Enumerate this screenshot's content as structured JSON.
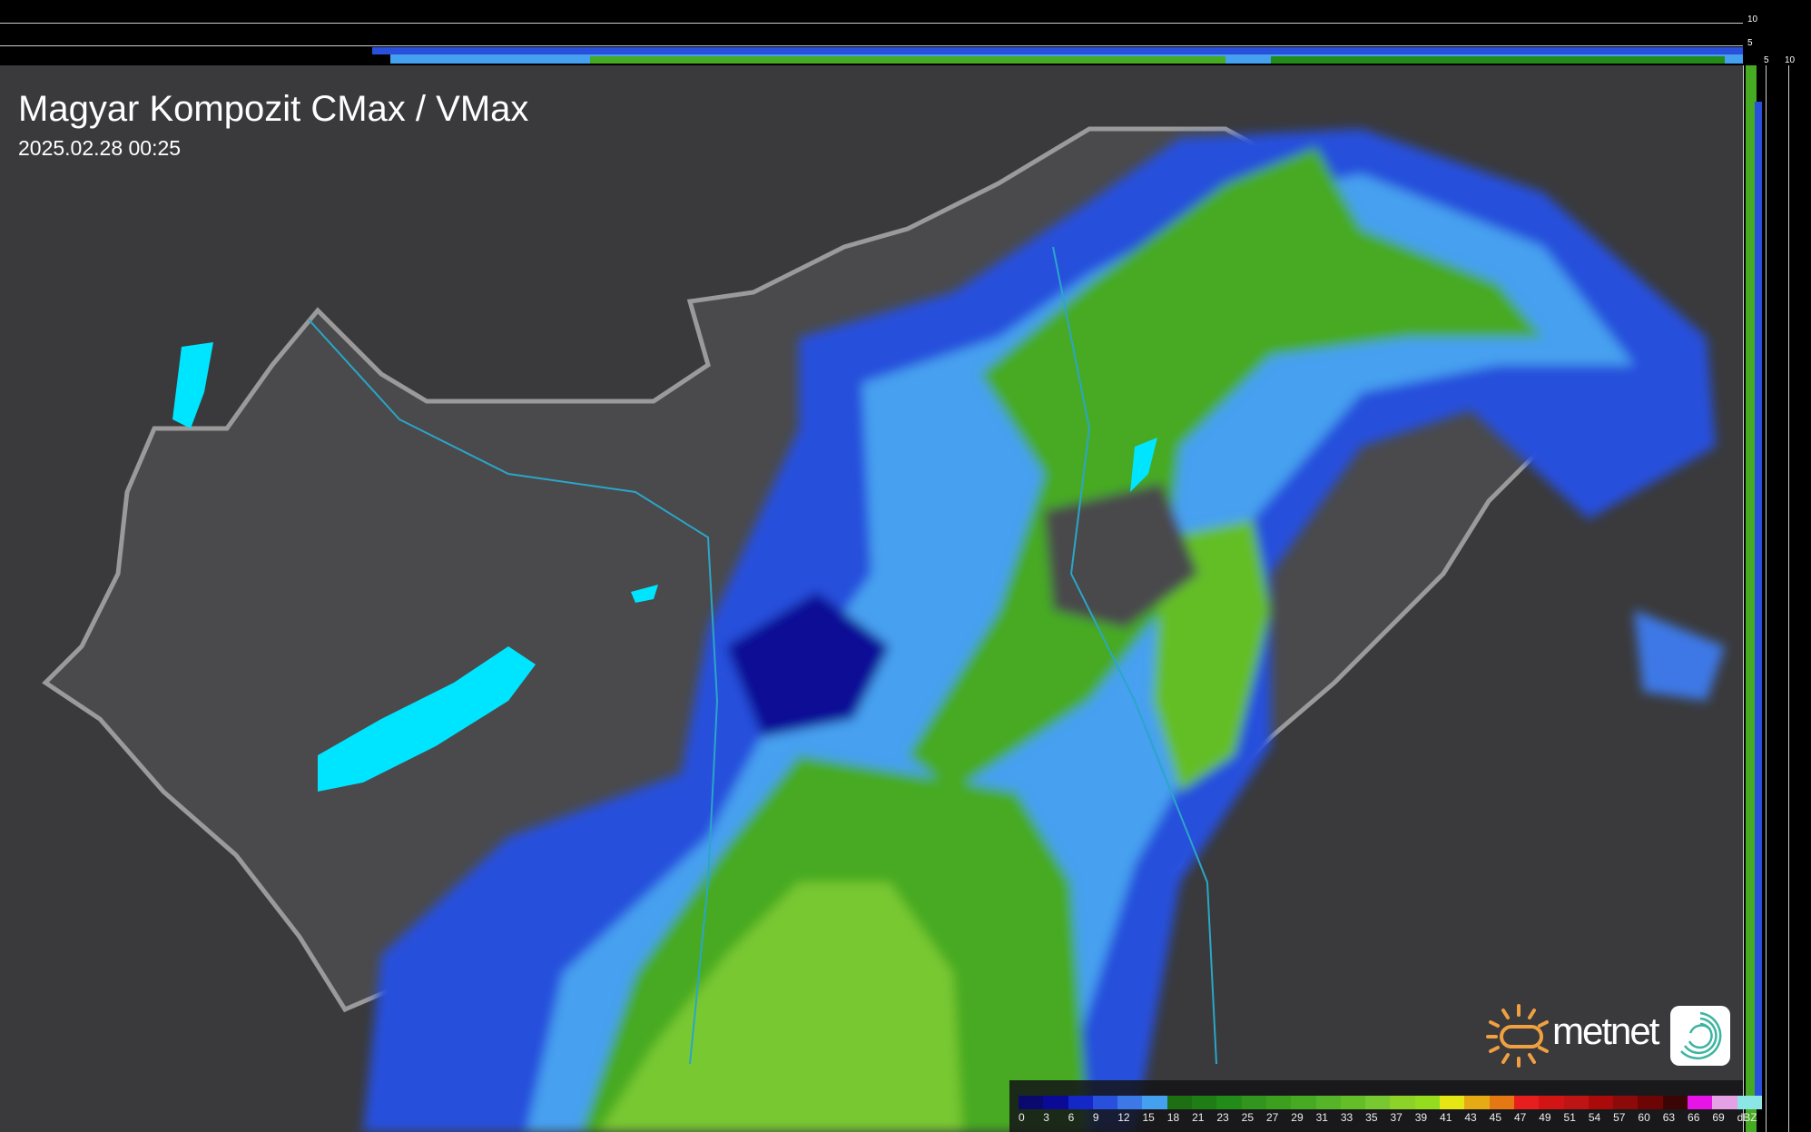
{
  "header": {
    "title": "Magyar Kompozit CMax / VMax",
    "timestamp": "2025.02.28 00:25"
  },
  "profile_axes": {
    "vertical_ticks": [
      "10",
      "5"
    ],
    "horizontal_ticks": [
      "5",
      "10"
    ]
  },
  "legend": {
    "unit": "dBZ",
    "labels": [
      "0",
      "3",
      "6",
      "9",
      "12",
      "15",
      "18",
      "21",
      "23",
      "25",
      "27",
      "29",
      "31",
      "33",
      "35",
      "37",
      "39",
      "41",
      "43",
      "45",
      "47",
      "49",
      "51",
      "54",
      "57",
      "60",
      "63",
      "66",
      "69"
    ],
    "colors": [
      "#0a0a6e",
      "#0a0a96",
      "#1428c8",
      "#2850dc",
      "#3c78e6",
      "#46a0f0",
      "#1e6e14",
      "#1e7d14",
      "#238c19",
      "#32961e",
      "#3ca01e",
      "#46aa23",
      "#55b428",
      "#64be28",
      "#78c832",
      "#8cd228",
      "#96dc1e",
      "#e6e614",
      "#e6aa14",
      "#e67814",
      "#e61e1e",
      "#d21414",
      "#be1414",
      "#aa0a0a",
      "#8c0a0a",
      "#6e0505",
      "#3c0505",
      "#e614e6",
      "#e6a0e6",
      "#8ce6e6"
    ]
  },
  "brand": {
    "name": "metnet",
    "sun_color": "#f0a040",
    "badge_color": "#3cb4a0"
  },
  "map": {
    "background_color": "#3a3a3c",
    "country_fill": "#4a4a4c",
    "border_color": "#9a9a9a",
    "lake_color": "#00e5ff"
  }
}
